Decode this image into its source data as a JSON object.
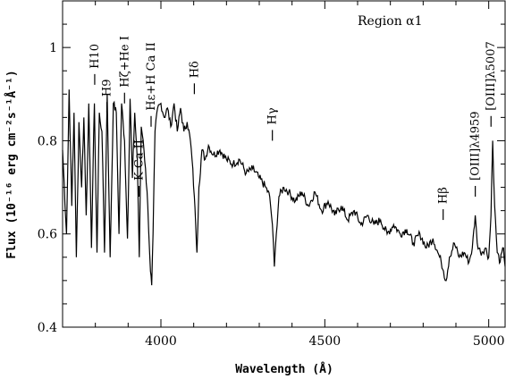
{
  "chart_data": {
    "type": "line",
    "xlabel": "Wavelength (Å)",
    "ylabel": "Flux (10⁻¹⁶ erg cm⁻²s⁻¹Å⁻¹)",
    "xlim": [
      3700,
      5050
    ],
    "ylim": [
      0.4,
      1.1
    ],
    "xticks": [
      4000,
      4500,
      5000
    ],
    "yticks": [
      0.4,
      0.6,
      0.8,
      1.0
    ],
    "xtick_labels": [
      "4000",
      "4500",
      "5000"
    ],
    "ytick_labels": [
      "0.4",
      "0.6",
      "0.8",
      "1"
    ],
    "grid": false,
    "annotation": "Region α1",
    "series": [
      {
        "x": [
          3700,
          3712,
          3720,
          3728,
          3735,
          3742,
          3750,
          3758,
          3765,
          3772,
          3780,
          3788,
          3797,
          3805,
          3812,
          3820,
          3828,
          3836,
          3845,
          3855,
          3864,
          3872,
          3880,
          3889,
          3898,
          3906,
          3913,
          3920,
          3928,
          3934,
          3940,
          3946,
          3953,
          3960,
          3968,
          3972,
          3976,
          3982,
          3990,
          4000,
          4010,
          4020,
          4030,
          4040,
          4050,
          4060,
          4070,
          4080,
          4090,
          4095,
          4102,
          4106,
          4110,
          4116,
          4125,
          4135,
          4145,
          4160,
          4180,
          4200,
          4220,
          4240,
          4260,
          4280,
          4300,
          4320,
          4332,
          4340,
          4346,
          4352,
          4360,
          4375,
          4390,
          4410,
          4430,
          4450,
          4470,
          4490,
          4510,
          4530,
          4550,
          4570,
          4590,
          4610,
          4630,
          4650,
          4670,
          4690,
          4710,
          4730,
          4750,
          4770,
          4790,
          4810,
          4830,
          4845,
          4855,
          4862,
          4870,
          4880,
          4895,
          4910,
          4925,
          4940,
          4950,
          4959,
          4965,
          4975,
          4990,
          5000,
          5007,
          5012,
          5018,
          5026,
          5035,
          5045,
          5050
        ],
        "values": [
          0.78,
          0.6,
          0.91,
          0.66,
          0.86,
          0.55,
          0.84,
          0.7,
          0.85,
          0.64,
          0.88,
          0.57,
          0.88,
          0.56,
          0.86,
          0.82,
          0.56,
          0.9,
          0.55,
          0.88,
          0.86,
          0.6,
          0.88,
          0.8,
          0.59,
          0.89,
          0.72,
          0.86,
          0.76,
          0.55,
          0.83,
          0.8,
          0.74,
          0.66,
          0.52,
          0.49,
          0.6,
          0.82,
          0.87,
          0.88,
          0.85,
          0.87,
          0.83,
          0.88,
          0.82,
          0.87,
          0.82,
          0.84,
          0.8,
          0.76,
          0.68,
          0.62,
          0.56,
          0.7,
          0.78,
          0.76,
          0.79,
          0.77,
          0.78,
          0.76,
          0.75,
          0.76,
          0.73,
          0.74,
          0.72,
          0.7,
          0.68,
          0.62,
          0.53,
          0.6,
          0.68,
          0.7,
          0.69,
          0.67,
          0.69,
          0.66,
          0.69,
          0.65,
          0.67,
          0.64,
          0.66,
          0.63,
          0.65,
          0.62,
          0.64,
          0.62,
          0.63,
          0.6,
          0.62,
          0.6,
          0.61,
          0.58,
          0.6,
          0.57,
          0.59,
          0.56,
          0.54,
          0.52,
          0.5,
          0.55,
          0.58,
          0.55,
          0.56,
          0.54,
          0.57,
          0.64,
          0.58,
          0.56,
          0.57,
          0.55,
          0.64,
          0.8,
          0.66,
          0.56,
          0.54,
          0.57,
          0.53
        ]
      }
    ],
    "line_labels": [
      {
        "text": "H10",
        "wavelength": 3798,
        "flux": 0.92
      },
      {
        "text": "H9",
        "wavelength": 3835,
        "flux": 0.86
      },
      {
        "text": "Hζ+He I",
        "wavelength": 3889,
        "flux": 0.88
      },
      {
        "text": "Hε+H Ca II",
        "wavelength": 3970,
        "flux": 0.83
      },
      {
        "text": "K Ca II",
        "wavelength": 3933,
        "flux": 0.68
      },
      {
        "text": "Hδ",
        "wavelength": 4102,
        "flux": 0.9
      },
      {
        "text": "Hγ",
        "wavelength": 4340,
        "flux": 0.8
      },
      {
        "text": "Hβ",
        "wavelength": 4861,
        "flux": 0.63
      },
      {
        "text": "[OIII]λ4959",
        "wavelength": 4959,
        "flux": 0.68
      },
      {
        "text": "[OIII]λ5007",
        "wavelength": 5007,
        "flux": 0.83
      }
    ]
  }
}
